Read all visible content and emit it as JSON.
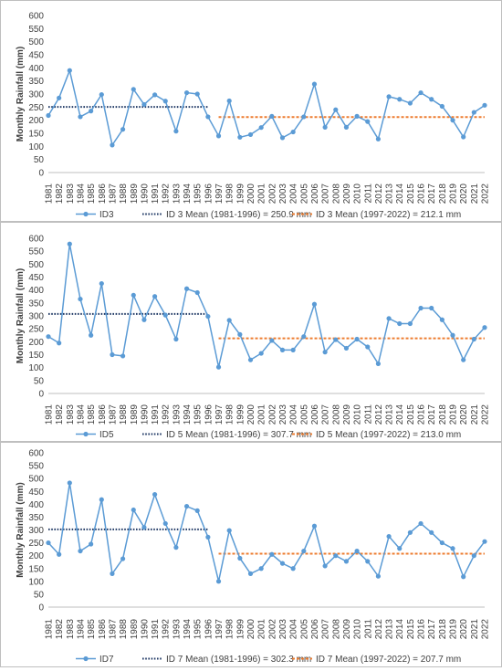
{
  "chart_data": [
    {
      "type": "line",
      "ylabel": "Monthly Rainfall (mm)",
      "ylim": [
        0,
        600
      ],
      "ytick_step": 50,
      "grid": false,
      "legend_position": "bottom",
      "x": [
        1981,
        1982,
        1983,
        1984,
        1985,
        1986,
        1987,
        1988,
        1989,
        1990,
        1991,
        1992,
        1993,
        1994,
        1995,
        1996,
        1997,
        1998,
        1999,
        2000,
        2001,
        2002,
        2003,
        2004,
        2005,
        2006,
        2007,
        2008,
        2009,
        2010,
        2011,
        2012,
        2013,
        2014,
        2015,
        2016,
        2017,
        2018,
        2019,
        2020,
        2021,
        2022
      ],
      "series": [
        {
          "name": "ID3",
          "color": "#5b9bd5",
          "values": [
            218,
            285,
            390,
            213,
            235,
            298,
            105,
            165,
            318,
            260,
            297,
            273,
            158,
            305,
            300,
            213,
            140,
            274,
            135,
            145,
            172,
            215,
            133,
            155,
            213,
            338,
            173,
            240,
            173,
            215,
            195,
            128,
            290,
            280,
            265,
            305,
            280,
            253,
            200,
            136,
            230,
            257
          ]
        }
      ],
      "means": [
        {
          "label": "ID 3 Mean (1981-1996) = 250.9 mm",
          "value": 250.9,
          "x_start": 1981,
          "x_end": 1996,
          "color": "#1f3864",
          "style": "dotted"
        },
        {
          "label": "ID 3 Mean (1997-2022) = 212.1 mm",
          "value": 212.1,
          "x_start": 1997,
          "x_end": 2022,
          "color": "#ed7d31",
          "style": "dashed"
        }
      ]
    },
    {
      "type": "line",
      "ylabel": "Monthly Rainfall (mm)",
      "ylim": [
        0,
        600
      ],
      "ytick_step": 50,
      "grid": false,
      "legend_position": "bottom",
      "x": [
        1981,
        1982,
        1983,
        1984,
        1985,
        1986,
        1987,
        1988,
        1989,
        1990,
        1991,
        1992,
        1993,
        1994,
        1995,
        1996,
        1997,
        1998,
        1999,
        2000,
        2001,
        2002,
        2003,
        2004,
        2005,
        2006,
        2007,
        2008,
        2009,
        2010,
        2011,
        2012,
        2013,
        2014,
        2015,
        2016,
        2017,
        2018,
        2019,
        2020,
        2021,
        2022
      ],
      "series": [
        {
          "name": "ID5",
          "color": "#5b9bd5",
          "values": [
            220,
            195,
            578,
            365,
            225,
            425,
            150,
            145,
            380,
            285,
            375,
            303,
            210,
            405,
            390,
            298,
            102,
            283,
            228,
            130,
            155,
            205,
            168,
            168,
            220,
            345,
            160,
            208,
            175,
            210,
            180,
            115,
            290,
            270,
            270,
            330,
            330,
            285,
            225,
            130,
            210,
            255
          ]
        }
      ],
      "means": [
        {
          "label": "ID 5 Mean (1981-1996) = 307.7 mm",
          "value": 307.7,
          "x_start": 1981,
          "x_end": 1996,
          "color": "#1f3864",
          "style": "dotted"
        },
        {
          "label": "ID 5 Mean (1997-2022) = 213.0 mm",
          "value": 213.0,
          "x_start": 1997,
          "x_end": 2022,
          "color": "#ed7d31",
          "style": "dashed"
        }
      ]
    },
    {
      "type": "line",
      "ylabel": "Monthly Rainfall (mm)",
      "ylim": [
        0,
        600
      ],
      "ytick_step": 50,
      "grid": false,
      "legend_position": "bottom",
      "x": [
        1981,
        1982,
        1983,
        1984,
        1985,
        1986,
        1987,
        1988,
        1989,
        1990,
        1991,
        1992,
        1993,
        1994,
        1995,
        1996,
        1997,
        1998,
        1999,
        2000,
        2001,
        2002,
        2003,
        2004,
        2005,
        2006,
        2007,
        2008,
        2009,
        2010,
        2011,
        2012,
        2013,
        2014,
        2015,
        2016,
        2017,
        2018,
        2019,
        2020,
        2021,
        2022
      ],
      "series": [
        {
          "name": "ID7",
          "color": "#5b9bd5",
          "values": [
            250,
            205,
            483,
            218,
            245,
            418,
            130,
            188,
            378,
            310,
            438,
            325,
            232,
            392,
            375,
            272,
            100,
            298,
            190,
            130,
            150,
            205,
            170,
            150,
            218,
            315,
            160,
            200,
            178,
            218,
            178,
            120,
            275,
            228,
            290,
            325,
            290,
            250,
            228,
            118,
            200,
            255
          ]
        }
      ],
      "means": [
        {
          "label": "ID 7 Mean (1981-1996) = 302.3 mm",
          "value": 302.3,
          "x_start": 1981,
          "x_end": 1996,
          "color": "#1f3864",
          "style": "dotted"
        },
        {
          "label": "ID 7 Mean (1997-2022) = 207.7 mm",
          "value": 207.7,
          "x_start": 1997,
          "x_end": 2022,
          "color": "#ed7d31",
          "style": "dashed"
        }
      ]
    }
  ]
}
